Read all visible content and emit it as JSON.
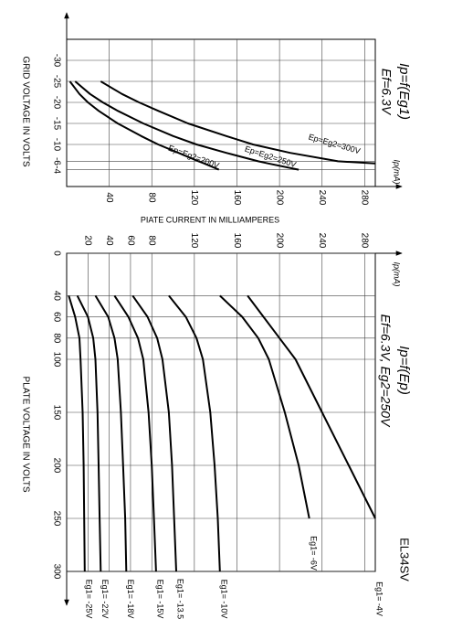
{
  "chart_data": [
    {
      "type": "line",
      "title": "Ip=f(Eg1)",
      "subtitle": "Ef=6.3V",
      "x_label": "GRID VOLTAGE IN VOLTS",
      "y_label": "PIATE CURRENT IN MILLIAMPERES",
      "y_arrow_label": "Ip(mA)",
      "x": [
        -25,
        -22,
        -20,
        -18,
        -15,
        -12,
        -10,
        -8,
        -6,
        -5.5,
        -4
      ],
      "series": [
        {
          "name": "Ep=Eg2=200V",
          "color": "#000000",
          "values": [
            3,
            12,
            20,
            30,
            48,
            70,
            86,
            105,
            124,
            129,
            143
          ]
        },
        {
          "name": "Ep=Eg2=250V",
          "color": "#000000",
          "values": [
            8,
            22,
            34,
            48,
            72,
            100,
            122,
            150,
            180,
            189,
            218
          ]
        },
        {
          "name": "Ep=Eg2=300V",
          "color": "#000000",
          "values": [
            32,
            52,
            68,
            86,
            114,
            150,
            175,
            210,
            255,
            290,
            null
          ]
        }
      ],
      "xlim": [
        -35,
        0
      ],
      "xticks": [
        -30,
        -25,
        -20,
        -15,
        -10,
        -6,
        -4
      ],
      "ylim": [
        0,
        290
      ],
      "yticks": [
        40,
        80,
        120,
        160,
        200,
        240,
        280
      ],
      "grid": true
    },
    {
      "type": "line",
      "title": "Ip=f(Ep)",
      "subtitle": "Ef=6.3V, Eg2=250V",
      "x_label": "PLATE VOLTAGE IN VOLTS",
      "y_arrow_label": "Ip(mA)",
      "annotation": "EL34SV",
      "x": [
        40,
        60,
        80,
        100,
        150,
        200,
        250,
        300
      ],
      "series": [
        {
          "name": "Eg1= -4V",
          "color": "#000000",
          "values": [
            170,
            185,
            200,
            215,
            240,
            265,
            290,
            null
          ]
        },
        {
          "name": "Eg1= -6V",
          "color": "#000000",
          "values": [
            144,
            165,
            180,
            190,
            205,
            218,
            228,
            null
          ]
        },
        {
          "name": "Eg1= -10V",
          "color": "#000000",
          "values": [
            96,
            112,
            122,
            128,
            135,
            139,
            142,
            144
          ]
        },
        {
          "name": "Eg1= -13.5",
          "color": "#000000",
          "values": [
            62,
            76,
            85,
            90,
            96,
            99,
            101,
            103
          ]
        },
        {
          "name": "Eg1= -15V",
          "color": "#000000",
          "values": [
            45,
            58,
            67,
            72,
            77,
            80,
            82,
            84
          ]
        },
        {
          "name": "Eg1= -18V",
          "color": "#000000",
          "values": [
            27,
            39,
            45,
            48,
            51,
            53,
            55,
            56
          ]
        },
        {
          "name": "Eg1= -22V",
          "color": "#000000",
          "values": [
            10,
            20,
            25,
            27,
            29,
            30,
            31,
            32
          ]
        },
        {
          "name": "Eg1= -25V",
          "color": "#000000",
          "values": [
            2,
            8,
            12,
            13,
            15,
            16,
            16.5,
            17
          ]
        }
      ],
      "xlim": [
        0,
        300
      ],
      "xticks": [
        0,
        40,
        60,
        80,
        100,
        150,
        200,
        250,
        300
      ],
      "ylim": [
        0,
        290
      ],
      "yticks": [
        20,
        40,
        60,
        80,
        120,
        160,
        200,
        240,
        280
      ],
      "grid": true
    }
  ]
}
